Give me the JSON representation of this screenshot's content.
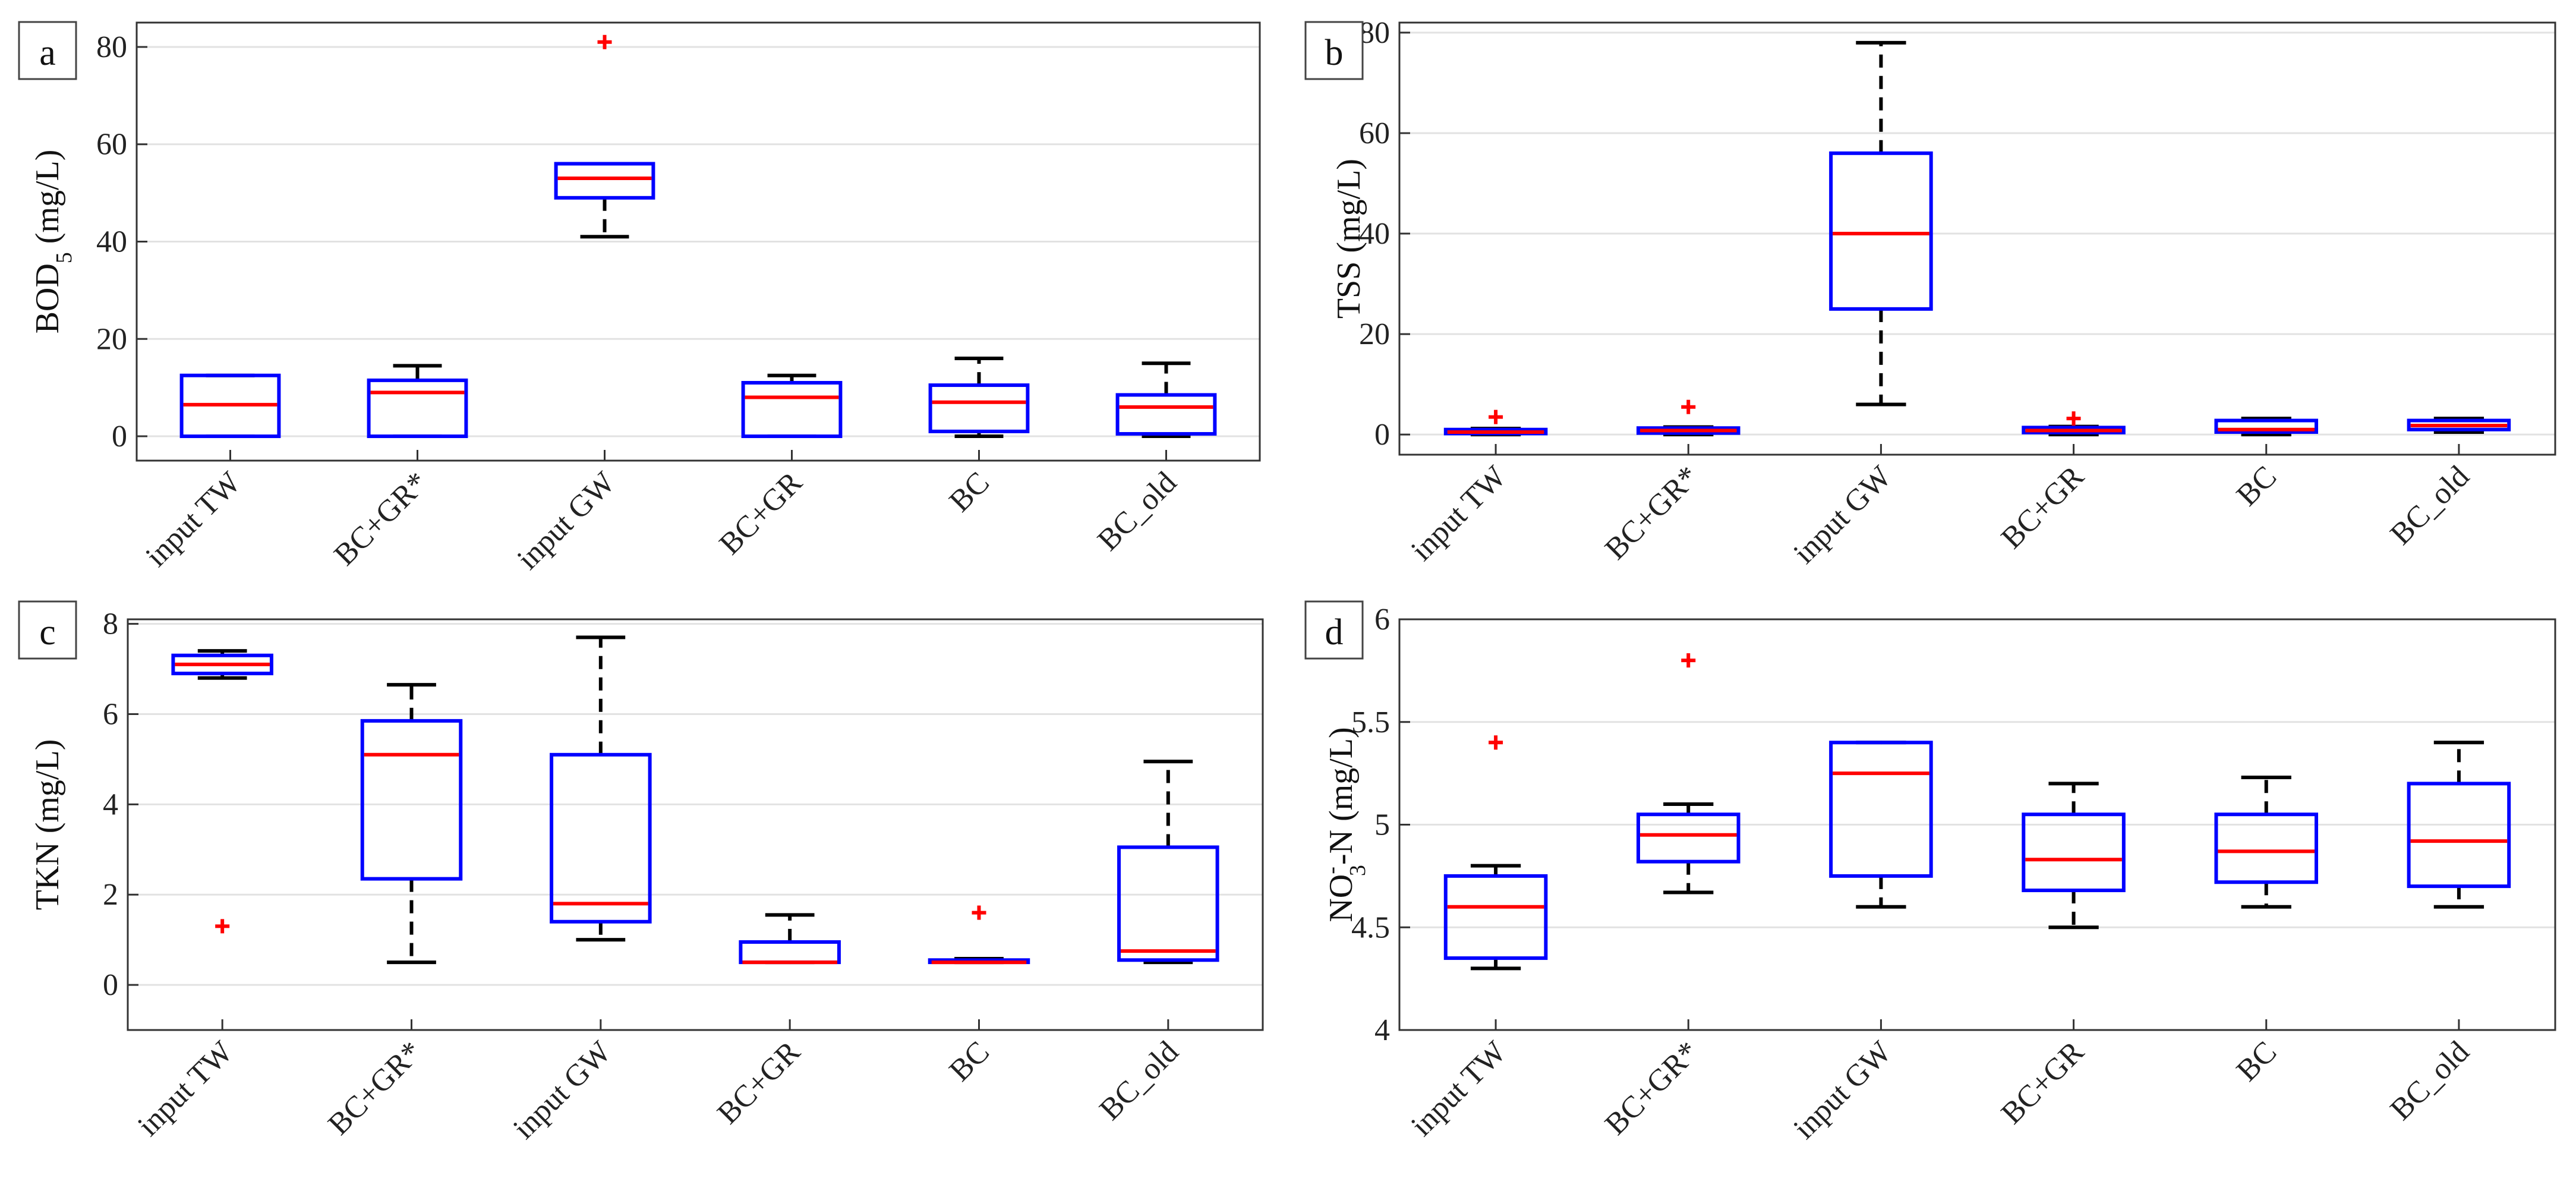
{
  "colors": {
    "box": "#0000ff",
    "median": "#ff0000",
    "outlier": "#ff0000",
    "whisker": "#000000",
    "grid": "#e2e2e2",
    "axis": "#333333"
  },
  "chart_data": [
    {
      "type": "boxplot",
      "panel": "a",
      "ylabel_main": "BOD",
      "ylabel_sub": "5",
      "ylabel_tail": " (mg/L)",
      "ylim": [
        -5,
        85
      ],
      "yticks": [
        0,
        20,
        40,
        60,
        80
      ],
      "categories": [
        "input TW",
        "BC+GR*",
        "input GW",
        "BC+GR",
        "BC",
        "BC_old"
      ],
      "boxes": [
        {
          "q1": 0,
          "median": 6.5,
          "q3": 12.5,
          "whisker_low": 0,
          "whisker_high": 12.5,
          "outliers": []
        },
        {
          "q1": 0,
          "median": 9,
          "q3": 11.5,
          "whisker_low": 0,
          "whisker_high": 14.5,
          "outliers": []
        },
        {
          "q1": 49,
          "median": 53,
          "q3": 56,
          "whisker_low": 41,
          "whisker_high": 56,
          "outliers": [
            81
          ]
        },
        {
          "q1": 0,
          "median": 8,
          "q3": 11,
          "whisker_low": 0,
          "whisker_high": 12.5,
          "outliers": []
        },
        {
          "q1": 1,
          "median": 7,
          "q3": 10.5,
          "whisker_low": 0,
          "whisker_high": 16,
          "outliers": []
        },
        {
          "q1": 0.5,
          "median": 6,
          "q3": 8.5,
          "whisker_low": 0,
          "whisker_high": 15,
          "outliers": []
        }
      ]
    },
    {
      "type": "boxplot",
      "panel": "b",
      "ylabel_main": "TSS (mg/L)",
      "ylim": [
        -4,
        82
      ],
      "yticks": [
        0,
        20,
        40,
        60,
        80
      ],
      "categories": [
        "input TW",
        "BC+GR*",
        "input GW",
        "BC+GR",
        "BC",
        "BC_old"
      ],
      "boxes": [
        {
          "q1": 0.2,
          "median": 0.5,
          "q3": 1,
          "whisker_low": 0,
          "whisker_high": 1.2,
          "outliers": [
            3.5
          ]
        },
        {
          "q1": 0.3,
          "median": 0.8,
          "q3": 1.3,
          "whisker_low": 0,
          "whisker_high": 1.5,
          "outliers": [
            5.5
          ]
        },
        {
          "q1": 25,
          "median": 40,
          "q3": 56,
          "whisker_low": 6,
          "whisker_high": 78,
          "outliers": []
        },
        {
          "q1": 0.4,
          "median": 0.8,
          "q3": 1.4,
          "whisker_low": 0,
          "whisker_high": 1.6,
          "outliers": [
            3.2
          ]
        },
        {
          "q1": 0.5,
          "median": 1,
          "q3": 2.8,
          "whisker_low": 0,
          "whisker_high": 3.2,
          "outliers": []
        },
        {
          "q1": 1,
          "median": 1.8,
          "q3": 2.8,
          "whisker_low": 0.5,
          "whisker_high": 3.2,
          "outliers": []
        }
      ]
    },
    {
      "type": "boxplot",
      "panel": "c",
      "ylabel_main": "TKN (mg/L)",
      "ylim": [
        -1,
        8.1
      ],
      "yticks": [
        0,
        2,
        4,
        6,
        8
      ],
      "categories": [
        "input TW",
        "BC+GR*",
        "input GW",
        "BC+GR",
        "BC",
        "BC_old"
      ],
      "boxes": [
        {
          "q1": 6.9,
          "median": 7.1,
          "q3": 7.3,
          "whisker_low": 6.8,
          "whisker_high": 7.4,
          "outliers": [
            1.3
          ]
        },
        {
          "q1": 2.35,
          "median": 5.1,
          "q3": 5.85,
          "whisker_low": 0.5,
          "whisker_high": 6.65,
          "outliers": []
        },
        {
          "q1": 1.4,
          "median": 1.8,
          "q3": 5.1,
          "whisker_low": 1,
          "whisker_high": 7.7,
          "outliers": []
        },
        {
          "q1": 0.5,
          "median": 0.5,
          "q3": 0.95,
          "whisker_low": 0.5,
          "whisker_high": 1.55,
          "outliers": []
        },
        {
          "q1": 0.5,
          "median": 0.5,
          "q3": 0.55,
          "whisker_low": 0.5,
          "whisker_high": 0.58,
          "outliers": [
            1.6
          ]
        },
        {
          "q1": 0.55,
          "median": 0.75,
          "q3": 3.05,
          "whisker_low": 0.5,
          "whisker_high": 4.95,
          "outliers": []
        }
      ]
    },
    {
      "type": "boxplot",
      "panel": "d",
      "ylabel_main": "NO",
      "ylabel_sup": "-",
      "ylabel_sub": "3",
      "ylabel_tail": "-N (mg/L)",
      "ylim": [
        4,
        6
      ],
      "yticks": [
        4,
        4.5,
        5,
        5.5,
        6
      ],
      "categories": [
        "input TW",
        "BC+GR*",
        "input GW",
        "BC+GR",
        "BC",
        "BC_old"
      ],
      "boxes": [
        {
          "q1": 4.35,
          "median": 4.6,
          "q3": 4.75,
          "whisker_low": 4.3,
          "whisker_high": 4.8,
          "outliers": [
            5.4
          ]
        },
        {
          "q1": 4.82,
          "median": 4.95,
          "q3": 5.05,
          "whisker_low": 4.67,
          "whisker_high": 5.1,
          "outliers": [
            5.8
          ]
        },
        {
          "q1": 4.75,
          "median": 5.25,
          "q3": 5.4,
          "whisker_low": 4.6,
          "whisker_high": 5.4,
          "outliers": []
        },
        {
          "q1": 4.68,
          "median": 4.83,
          "q3": 5.05,
          "whisker_low": 4.5,
          "whisker_high": 5.2,
          "outliers": []
        },
        {
          "q1": 4.72,
          "median": 4.87,
          "q3": 5.05,
          "whisker_low": 4.6,
          "whisker_high": 5.23,
          "outliers": []
        },
        {
          "q1": 4.7,
          "median": 4.92,
          "q3": 5.2,
          "whisker_low": 4.6,
          "whisker_high": 5.4,
          "outliers": []
        }
      ]
    }
  ]
}
